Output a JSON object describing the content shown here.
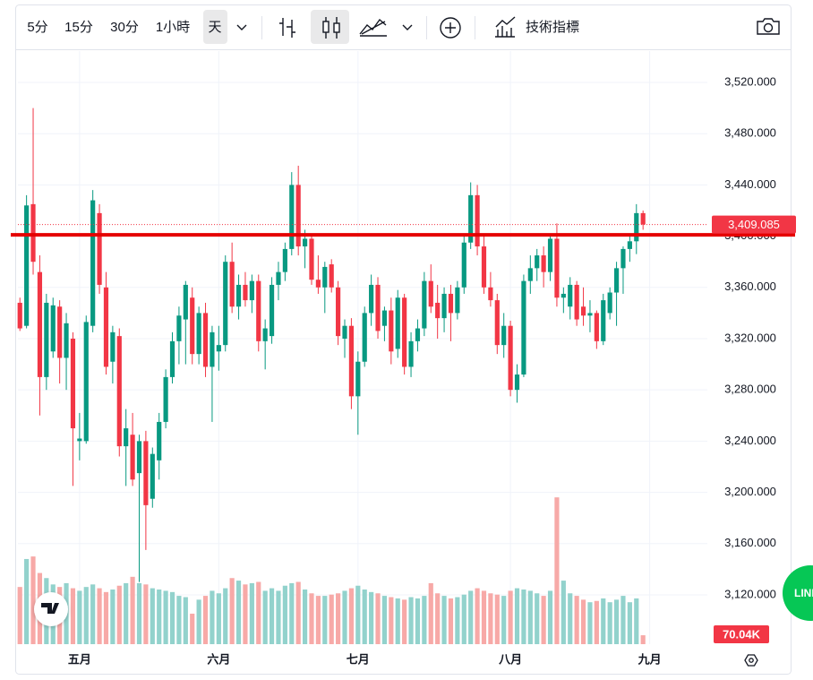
{
  "toolbar": {
    "intervals": [
      "5分",
      "15分",
      "30分",
      "1小時",
      "天"
    ],
    "indicators": "技術指標"
  },
  "share_button": "LINE",
  "chart_data": {
    "type": "candlestick",
    "xlim": [
      -0.3,
      103.7
    ],
    "xticks": [
      {
        "value": 9,
        "label": "五月"
      },
      {
        "value": 30,
        "label": "六月"
      },
      {
        "value": 51,
        "label": "七月"
      },
      {
        "value": 74,
        "label": "八月"
      },
      {
        "value": 95,
        "label": "九月"
      }
    ],
    "ylim": [
      3081.5,
      3544.5
    ],
    "yticks": [
      {
        "value": 3120,
        "label": "3,120.000"
      },
      {
        "value": 3160,
        "label": "3,160.000"
      },
      {
        "value": 3200,
        "label": "3,200.000"
      },
      {
        "value": 3240,
        "label": "3,240.000"
      },
      {
        "value": 3280,
        "label": "3,280.000"
      },
      {
        "value": 3320,
        "label": "3,320.000"
      },
      {
        "value": 3360,
        "label": "3,360.000"
      },
      {
        "value": 3400,
        "label": "3,400.000"
      },
      {
        "value": 3440,
        "label": "3,440.000"
      },
      {
        "value": 3480,
        "label": "3,480.000"
      },
      {
        "value": 3520,
        "label": "3,520.000"
      }
    ],
    "grid": true,
    "up_color": "#089981",
    "down_color": "#f23645",
    "open": [
      3348,
      3330,
      3425,
      3372,
      3290,
      3310,
      3345,
      3305,
      3320,
      3240,
      3240,
      3330,
      3418,
      3360,
      3302,
      3322,
      3236,
      3245,
      3215,
      3240,
      3195,
      3225,
      3255,
      3290,
      3318,
      3335,
      3352,
      3308,
      3340,
      3298,
      3310,
      3315,
      3380,
      3345,
      3362,
      3350,
      3365,
      3318,
      3322,
      3362,
      3372,
      3390,
      3440,
      3392,
      3398,
      3366,
      3360,
      3378,
      3360,
      3320,
      3330,
      3275,
      3302,
      3340,
      3362,
      3330,
      3342,
      3312,
      3352,
      3298,
      3318,
      3328,
      3365,
      3348,
      3336,
      3355,
      3340,
      3360,
      3395,
      3432,
      3392,
      3360,
      3350,
      3315,
      3330,
      3280,
      3292,
      3365,
      3375,
      3385,
      3372,
      3398,
      3352,
      3345,
      3362,
      3345,
      3338,
      3340,
      3318,
      3340,
      3356,
      3375,
      3390,
      3396,
      3418
    ],
    "high": [
      3352,
      3432,
      3500,
      3385,
      3355,
      3352,
      3350,
      3340,
      3325,
      3262,
      3338,
      3436,
      3425,
      3372,
      3330,
      3328,
      3265,
      3262,
      3245,
      3248,
      3235,
      3262,
      3296,
      3325,
      3345,
      3365,
      3360,
      3345,
      3348,
      3330,
      3330,
      3385,
      3395,
      3370,
      3372,
      3370,
      3370,
      3335,
      3368,
      3380,
      3395,
      3450,
      3455,
      3405,
      3402,
      3385,
      3380,
      3382,
      3365,
      3335,
      3336,
      3310,
      3345,
      3370,
      3368,
      3345,
      3352,
      3358,
      3355,
      3325,
      3335,
      3372,
      3378,
      3362,
      3360,
      3362,
      3365,
      3400,
      3442,
      3440,
      3400,
      3372,
      3355,
      3340,
      3334,
      3300,
      3370,
      3385,
      3390,
      3392,
      3402,
      3410,
      3360,
      3368,
      3365,
      3360,
      3350,
      3342,
      3355,
      3360,
      3380,
      3392,
      3400,
      3425,
      3420
    ],
    "low": [
      3326,
      3328,
      3370,
      3260,
      3280,
      3305,
      3285,
      3280,
      3205,
      3225,
      3238,
      3325,
      3355,
      3292,
      3285,
      3228,
      3205,
      3205,
      3130,
      3155,
      3188,
      3210,
      3250,
      3285,
      3300,
      3300,
      3300,
      3300,
      3290,
      3255,
      3295,
      3310,
      3340,
      3335,
      3345,
      3340,
      3310,
      3296,
      3316,
      3350,
      3365,
      3385,
      3385,
      3375,
      3362,
      3355,
      3340,
      3356,
      3315,
      3305,
      3265,
      3245,
      3298,
      3330,
      3320,
      3318,
      3300,
      3305,
      3292,
      3290,
      3310,
      3322,
      3340,
      3320,
      3325,
      3318,
      3335,
      3355,
      3390,
      3385,
      3355,
      3345,
      3308,
      3305,
      3275,
      3270,
      3290,
      3355,
      3365,
      3360,
      3365,
      3345,
      3340,
      3335,
      3330,
      3330,
      3325,
      3312,
      3315,
      3335,
      3330,
      3355,
      3380,
      3386,
      3405
    ],
    "close": [
      3328,
      3424,
      3380,
      3290,
      3348,
      3346,
      3305,
      3332,
      3250,
      3242,
      3333,
      3428,
      3362,
      3298,
      3325,
      3236,
      3250,
      3210,
      3240,
      3190,
      3230,
      3255,
      3290,
      3318,
      3338,
      3362,
      3308,
      3340,
      3298,
      3325,
      3315,
      3380,
      3345,
      3362,
      3350,
      3365,
      3318,
      3328,
      3362,
      3372,
      3390,
      3440,
      3392,
      3398,
      3366,
      3360,
      3376,
      3360,
      3322,
      3330,
      3275,
      3302,
      3340,
      3362,
      3326,
      3342,
      3310,
      3352,
      3298,
      3318,
      3328,
      3365,
      3345,
      3336,
      3355,
      3340,
      3360,
      3395,
      3432,
      3392,
      3360,
      3350,
      3315,
      3330,
      3280,
      3292,
      3365,
      3375,
      3385,
      3372,
      3398,
      3352,
      3355,
      3362,
      3335,
      3338,
      3340,
      3318,
      3350,
      3356,
      3375,
      3390,
      3396,
      3418,
      3409.085
    ],
    "last_close_label": "3,409.085",
    "horizontal_line": {
      "value": 3401,
      "color": "#e50000"
    },
    "volume": {
      "values": [
        450,
        670,
        690,
        560,
        520,
        470,
        450,
        480,
        440,
        420,
        450,
        470,
        440,
        410,
        430,
        460,
        480,
        530,
        480,
        470,
        440,
        430,
        420,
        410,
        380,
        370,
        240,
        350,
        380,
        420,
        400,
        440,
        520,
        500,
        470,
        480,
        490,
        420,
        440,
        420,
        460,
        480,
        490,
        430,
        400,
        380,
        380,
        390,
        400,
        420,
        440,
        460,
        430,
        410,
        400,
        380,
        370,
        360,
        350,
        370,
        360,
        380,
        480,
        400,
        380,
        360,
        370,
        390,
        420,
        440,
        420,
        400,
        390,
        380,
        420,
        440,
        430,
        420,
        400,
        380,
        420,
        1155,
        500,
        400,
        380,
        350,
        330,
        340,
        360,
        330,
        350,
        380,
        330,
        360,
        70.04
      ],
      "lim": [
        0,
        1400
      ],
      "up_color": "#92d2cc",
      "down_color": "#f7a9a7",
      "last_label": "70.04K"
    }
  }
}
